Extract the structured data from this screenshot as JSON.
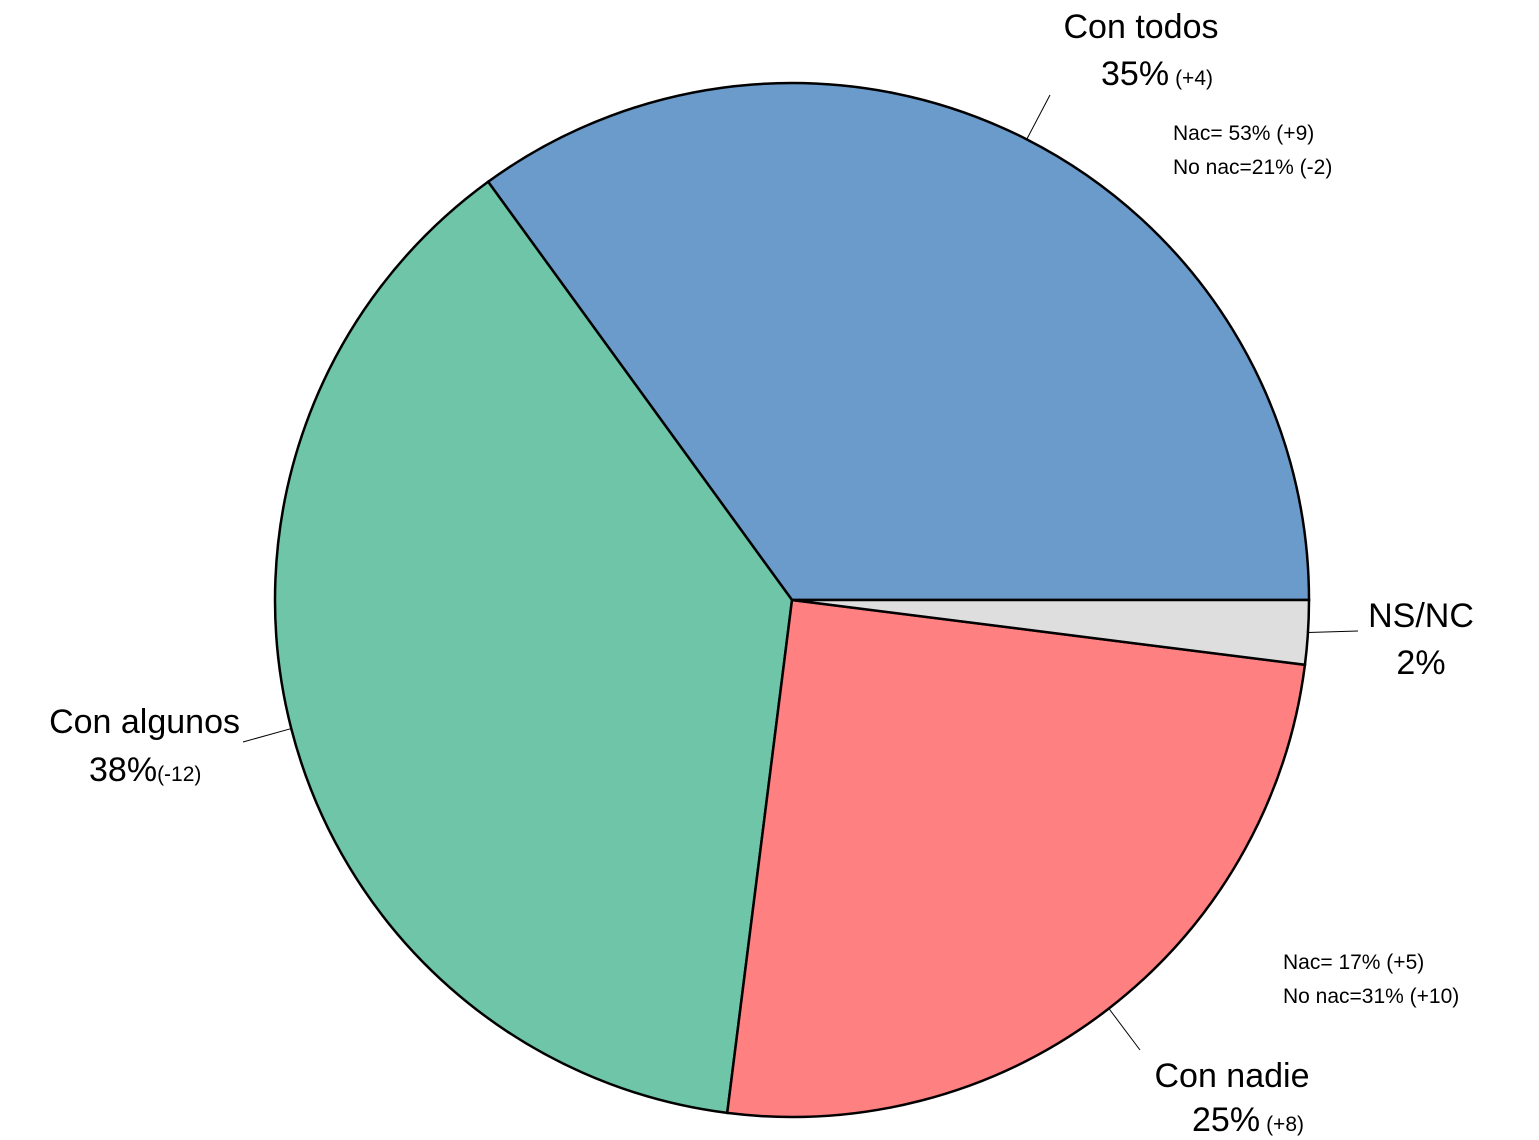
{
  "chart_data": {
    "type": "pie",
    "slices": [
      {
        "label": "Con todos",
        "value": 35,
        "value_label": "35%",
        "change": "(+4)",
        "color": "#6a9bcb",
        "notes": [
          "Nac= 53% (+9)",
          "No nac=21% (-2)"
        ]
      },
      {
        "label": "Con algunos",
        "value": 38,
        "value_label": "38%",
        "change": "(-12)",
        "color": "#6ec5a8",
        "notes": []
      },
      {
        "label": "Con nadie",
        "value": 25,
        "value_label": "25%",
        "change": "(+8)",
        "color": "#fe8081",
        "notes": [
          "Nac= 17% (+5)",
          "No nac=31% (+10)"
        ]
      },
      {
        "label": "NS/NC",
        "value": 2,
        "value_label": "2%",
        "change": "",
        "color": "#dedede",
        "notes": []
      }
    ],
    "direction": "counterclockwise",
    "start": "right (3 o'clock)"
  }
}
